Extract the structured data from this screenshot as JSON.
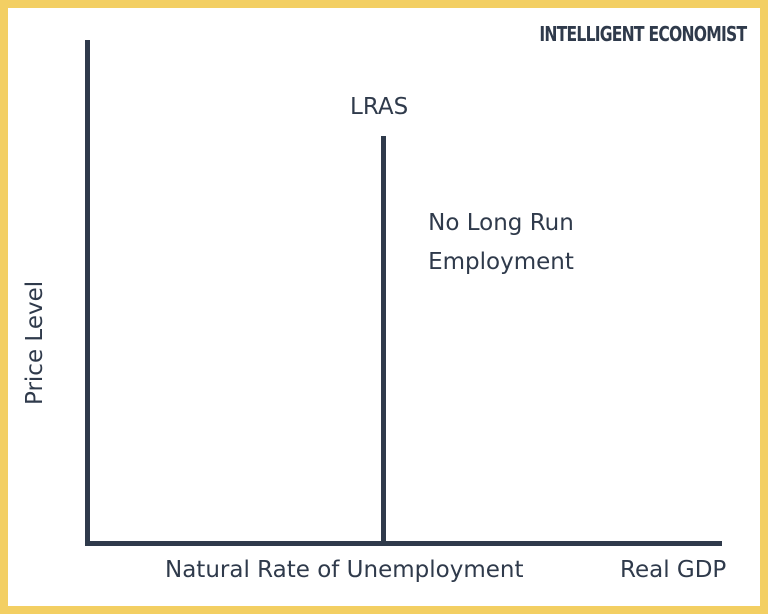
{
  "brand": "INTELLIGENT ECONOMIST",
  "diagram": {
    "curve_label": "LRAS",
    "note_lines": [
      "No Long Run",
      "Employment"
    ],
    "y_axis_label": "Price Level",
    "x_axis_label": "Real GDP",
    "x_marker_label": "Natural Rate of Unemployment"
  },
  "colors": {
    "border": "#f3cf63",
    "ink": "#2f3a4b",
    "background": "#ffffff"
  }
}
